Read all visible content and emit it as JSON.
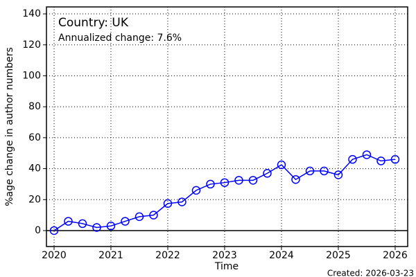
{
  "chart_data": {
    "type": "line",
    "title": "Country: UK",
    "subtitle": "Annualized change: 7.6%",
    "x_label": "Time",
    "y_label": "%age change in author numbers",
    "footer": "Created: 2026-03-23",
    "x": [
      2020,
      2020.25,
      2020.5,
      2020.75,
      2021,
      2021.25,
      2021.5,
      2021.75,
      2022,
      2022.25,
      2022.5,
      2022.75,
      2023,
      2023.25,
      2023.5,
      2023.75,
      2024,
      2024.25,
      2024.5,
      2024.75,
      2025,
      2025.25,
      2025.5,
      2025.75,
      2026
    ],
    "series": [
      {
        "color": "#0000ff",
        "values": [
          0,
          6,
          4.5,
          2,
          3,
          6,
          9,
          10,
          17.5,
          18.5,
          26,
          30,
          31,
          32.5,
          32.5,
          37,
          42.5,
          33,
          38.5,
          38.5,
          36,
          46,
          49,
          45,
          46
        ]
      }
    ],
    "xlim": [
      2019.866,
      2026.22
    ],
    "xticks": [
      2020,
      2021,
      2022,
      2023,
      2024,
      2025,
      2026
    ],
    "ylim": [
      -10.3,
      144.5
    ],
    "yticks": [
      0,
      20,
      40,
      60,
      80,
      100,
      120,
      140
    ],
    "grid": true,
    "title_color": "#ff0000",
    "footer_color": "#008000"
  }
}
